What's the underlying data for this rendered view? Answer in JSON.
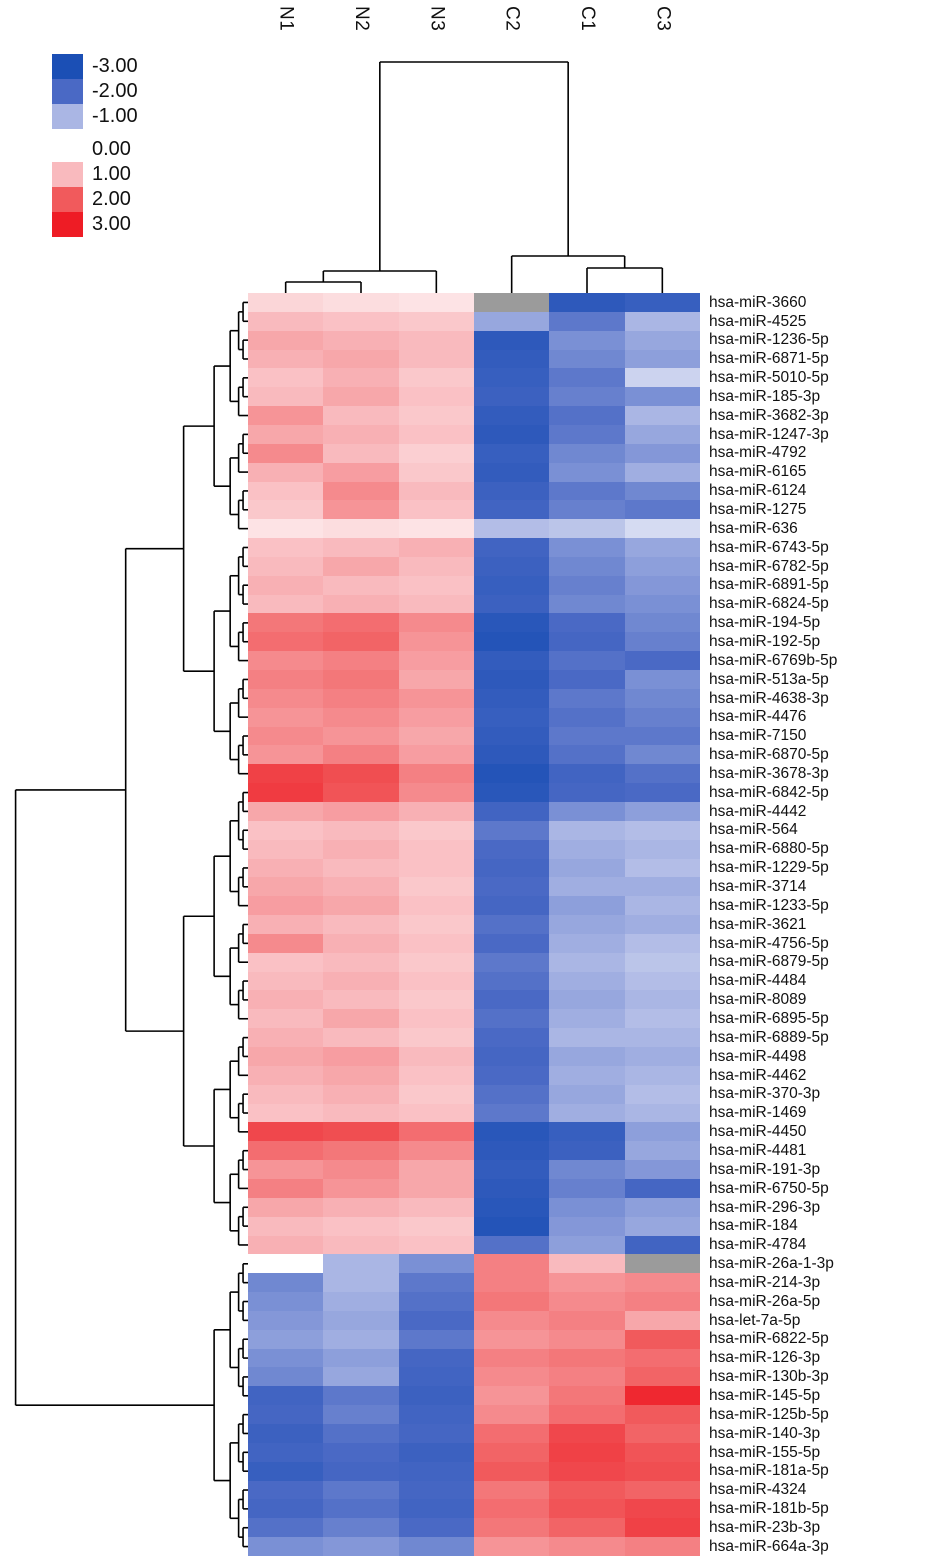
{
  "figure": {
    "description": "Two-way hierarchical clustering heatmap of miRNA expression in N (normal) vs C (case) samples"
  },
  "legend": {
    "entries": [
      {
        "value": "-3.00",
        "color": "#1b4fb5"
      },
      {
        "value": "-2.00",
        "color": "#4a69c5"
      },
      {
        "value": "-1.00",
        "color": "#aab6e4"
      },
      {
        "value": "0.00",
        "color": "#ffffff"
      },
      {
        "value": "1.00",
        "color": "#f9babe"
      },
      {
        "value": "2.00",
        "color": "#f15a5c"
      },
      {
        "value": "3.00",
        "color": "#ee1c25"
      }
    ]
  },
  "chart_data": {
    "type": "heatmap",
    "columns": [
      "N1",
      "N2",
      "N3",
      "C2",
      "C1",
      "C3"
    ],
    "column_clusters": [
      [
        "N1",
        "N2",
        "N3"
      ],
      [
        "C2",
        "C1",
        "C3"
      ]
    ],
    "row_split_index": 51,
    "rows": [
      "hsa-miR-3660",
      "hsa-miR-4525",
      "hsa-miR-1236-5p",
      "hsa-miR-6871-5p",
      "hsa-miR-5010-5p",
      "hsa-miR-185-3p",
      "hsa-miR-3682-3p",
      "hsa-miR-1247-3p",
      "hsa-miR-4792",
      "hsa-miR-6165",
      "hsa-miR-6124",
      "hsa-miR-1275",
      "hsa-miR-636",
      "hsa-miR-6743-5p",
      "hsa-miR-6782-5p",
      "hsa-miR-6891-5p",
      "hsa-miR-6824-5p",
      "hsa-miR-194-5p",
      "hsa-miR-192-5p",
      "hsa-miR-6769b-5p",
      "hsa-miR-513a-5p",
      "hsa-miR-4638-3p",
      "hsa-miR-4476",
      "hsa-miR-7150",
      "hsa-miR-6870-5p",
      "hsa-miR-3678-3p",
      "hsa-miR-6842-5p",
      "hsa-miR-4442",
      "hsa-miR-564",
      "hsa-miR-6880-5p",
      "hsa-miR-1229-5p",
      "hsa-miR-3714",
      "hsa-miR-1233-5p",
      "hsa-miR-3621",
      "hsa-miR-4756-5p",
      "hsa-miR-6879-5p",
      "hsa-miR-4484",
      "hsa-miR-8089",
      "hsa-miR-6895-5p",
      "hsa-miR-6889-5p",
      "hsa-miR-4498",
      "hsa-miR-4462",
      "hsa-miR-370-3p",
      "hsa-miR-1469",
      "hsa-miR-4450",
      "hsa-miR-4481",
      "hsa-miR-191-3p",
      "hsa-miR-6750-5p",
      "hsa-miR-296-3p",
      "hsa-miR-184",
      "hsa-miR-4784",
      "hsa-miR-26a-1-3p",
      "hsa-miR-214-3p",
      "hsa-miR-26a-5p",
      "hsa-let-7a-5p",
      "hsa-miR-6822-5p",
      "hsa-miR-126-3p",
      "hsa-miR-130b-3p",
      "hsa-miR-145-5p",
      "hsa-miR-125b-5p",
      "hsa-miR-140-3p",
      "hsa-miR-155-5p",
      "hsa-miR-181a-5p",
      "hsa-miR-4324",
      "hsa-miR-181b-5p",
      "hsa-miR-23b-3p",
      "hsa-miR-664a-3p"
    ],
    "values": [
      [
        0.6,
        0.5,
        0.4,
        null,
        -2.6,
        -2.4
      ],
      [
        1.0,
        0.9,
        0.8,
        -1.2,
        -1.8,
        -1.0
      ],
      [
        1.2,
        1.1,
        1.0,
        -2.6,
        -1.5,
        -1.2
      ],
      [
        1.1,
        1.2,
        1.0,
        -2.5,
        -1.6,
        -1.3
      ],
      [
        0.9,
        1.1,
        0.8,
        -2.4,
        -1.8,
        -0.6
      ],
      [
        1.0,
        1.2,
        0.9,
        -2.3,
        -1.7,
        -1.5
      ],
      [
        1.4,
        1.0,
        0.8,
        -2.5,
        -1.9,
        -1.0
      ],
      [
        1.2,
        1.1,
        0.9,
        -2.6,
        -1.8,
        -1.2
      ],
      [
        1.5,
        1.0,
        0.7,
        -2.4,
        -1.6,
        -1.4
      ],
      [
        1.1,
        1.3,
        0.8,
        -2.5,
        -1.5,
        -1.1
      ],
      [
        0.9,
        1.5,
        1.0,
        -2.3,
        -1.8,
        -1.6
      ],
      [
        0.8,
        1.4,
        0.9,
        -2.2,
        -1.7,
        -1.8
      ],
      [
        0.4,
        0.5,
        0.4,
        -0.9,
        -0.8,
        -0.5
      ],
      [
        0.9,
        1.0,
        1.1,
        -2.2,
        -1.5,
        -1.2
      ],
      [
        1.0,
        1.2,
        1.0,
        -2.3,
        -1.6,
        -1.3
      ],
      [
        1.1,
        1.0,
        0.9,
        -2.4,
        -1.7,
        -1.4
      ],
      [
        1.0,
        1.1,
        1.0,
        -2.3,
        -1.6,
        -1.5
      ],
      [
        1.7,
        1.8,
        1.5,
        -2.7,
        -2.0,
        -1.6
      ],
      [
        1.8,
        1.9,
        1.4,
        -2.8,
        -2.1,
        -1.7
      ],
      [
        1.5,
        1.6,
        1.3,
        -2.5,
        -1.9,
        -2.0
      ],
      [
        1.6,
        1.7,
        1.2,
        -2.6,
        -2.0,
        -1.5
      ],
      [
        1.5,
        1.6,
        1.4,
        -2.5,
        -1.8,
        -1.6
      ],
      [
        1.4,
        1.5,
        1.3,
        -2.4,
        -1.9,
        -1.7
      ],
      [
        1.5,
        1.4,
        1.2,
        -2.5,
        -1.8,
        -1.8
      ],
      [
        1.4,
        1.6,
        1.3,
        -2.6,
        -1.9,
        -1.6
      ],
      [
        2.4,
        2.2,
        1.6,
        -2.8,
        -2.2,
        -1.9
      ],
      [
        2.5,
        2.1,
        1.5,
        -2.7,
        -2.1,
        -2.0
      ],
      [
        1.2,
        1.3,
        1.1,
        -2.2,
        -1.5,
        -1.3
      ],
      [
        0.9,
        1.0,
        0.8,
        -1.8,
        -1.0,
        -0.9
      ],
      [
        1.0,
        1.1,
        0.9,
        -2.0,
        -1.1,
        -1.0
      ],
      [
        1.1,
        1.0,
        0.9,
        -2.1,
        -1.2,
        -0.9
      ],
      [
        1.2,
        1.1,
        0.8,
        -2.0,
        -1.1,
        -1.1
      ],
      [
        1.3,
        1.2,
        0.9,
        -2.1,
        -1.3,
        -1.0
      ],
      [
        1.1,
        1.0,
        0.8,
        -1.9,
        -1.2,
        -1.1
      ],
      [
        1.5,
        1.1,
        0.9,
        -2.0,
        -1.1,
        -0.9
      ],
      [
        0.9,
        1.0,
        0.8,
        -1.8,
        -1.0,
        -0.8
      ],
      [
        1.0,
        1.1,
        0.9,
        -1.9,
        -1.1,
        -0.9
      ],
      [
        1.1,
        1.0,
        0.8,
        -2.0,
        -1.2,
        -1.0
      ],
      [
        1.0,
        1.2,
        0.9,
        -1.9,
        -1.1,
        -0.9
      ],
      [
        1.1,
        1.0,
        0.8,
        -2.0,
        -1.0,
        -1.0
      ],
      [
        1.2,
        1.3,
        1.0,
        -2.1,
        -1.2,
        -1.1
      ],
      [
        1.1,
        1.2,
        0.9,
        -2.0,
        -1.1,
        -1.0
      ],
      [
        1.0,
        1.1,
        0.8,
        -1.9,
        -1.2,
        -0.9
      ],
      [
        0.9,
        1.0,
        0.9,
        -1.8,
        -1.1,
        -1.0
      ],
      [
        2.3,
        2.2,
        1.8,
        -2.7,
        -2.4,
        -1.3
      ],
      [
        1.8,
        1.7,
        1.5,
        -2.6,
        -2.3,
        -1.2
      ],
      [
        1.4,
        1.5,
        1.2,
        -2.5,
        -1.6,
        -1.4
      ],
      [
        1.6,
        1.4,
        1.2,
        -2.6,
        -1.7,
        -2.1
      ],
      [
        1.2,
        1.1,
        1.0,
        -2.7,
        -1.5,
        -1.3
      ],
      [
        1.0,
        0.9,
        0.8,
        -2.8,
        -1.4,
        -1.2
      ],
      [
        1.1,
        1.0,
        0.9,
        -1.9,
        -1.3,
        -2.2
      ],
      [
        0.0,
        -1.0,
        -1.5,
        1.6,
        1.0,
        null
      ],
      [
        -1.6,
        -1.0,
        -1.8,
        1.6,
        1.4,
        1.5
      ],
      [
        -1.5,
        -1.1,
        -1.9,
        1.7,
        1.5,
        1.6
      ],
      [
        -1.4,
        -1.2,
        -2.0,
        1.5,
        1.6,
        1.2
      ],
      [
        -1.3,
        -1.1,
        -1.8,
        1.4,
        1.5,
        2.0
      ],
      [
        -1.5,
        -1.3,
        -2.1,
        1.6,
        1.7,
        1.8
      ],
      [
        -1.6,
        -1.2,
        -2.2,
        1.5,
        1.6,
        1.9
      ],
      [
        -2.2,
        -1.8,
        -2.3,
        1.4,
        1.7,
        2.8
      ],
      [
        -2.1,
        -1.7,
        -2.2,
        1.5,
        1.8,
        2.0
      ],
      [
        -2.3,
        -1.9,
        -2.1,
        1.8,
        2.3,
        1.9
      ],
      [
        -2.2,
        -2.0,
        -2.3,
        1.9,
        2.4,
        2.1
      ],
      [
        -2.4,
        -2.1,
        -2.2,
        2.0,
        2.3,
        2.2
      ],
      [
        -2.0,
        -1.8,
        -2.1,
        1.7,
        2.0,
        1.9
      ],
      [
        -2.1,
        -1.9,
        -2.2,
        1.8,
        2.1,
        2.3
      ],
      [
        -1.9,
        -1.7,
        -2.0,
        1.7,
        1.9,
        2.4
      ],
      [
        -1.5,
        -1.4,
        -1.6,
        1.4,
        1.5,
        1.6
      ]
    ],
    "na_color": "#9b9b9b",
    "color_scale": {
      "domain": [
        -3,
        -2,
        -1,
        0,
        1,
        2,
        3
      ],
      "colors": [
        "#1b4fb5",
        "#4a69c5",
        "#aab6e4",
        "#ffffff",
        "#f9babe",
        "#f15a5c",
        "#ee1c25"
      ]
    }
  }
}
